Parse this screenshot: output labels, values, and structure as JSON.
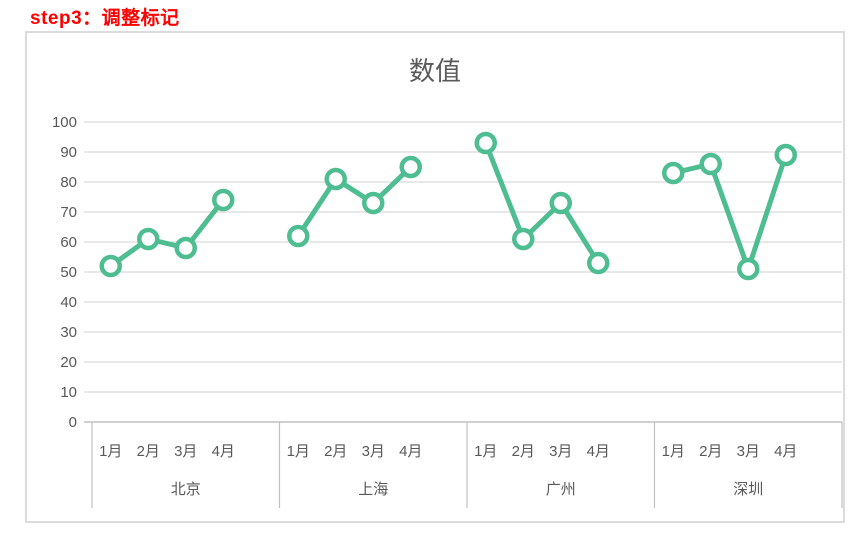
{
  "header": {
    "step_label": "step3：调整标记",
    "color": "#ff0000"
  },
  "chart_data": {
    "type": "line",
    "title": "数值",
    "legend": "none",
    "grid": true,
    "ylim": [
      0,
      100
    ],
    "ytick_step": 10,
    "yticks": [
      0,
      10,
      20,
      30,
      40,
      50,
      60,
      70,
      80,
      90,
      100
    ],
    "month_categories": [
      "1月",
      "2月",
      "3月",
      "4月"
    ],
    "groups": [
      {
        "city": "北京",
        "values": [
          52,
          61,
          58,
          74
        ]
      },
      {
        "city": "上海",
        "values": [
          62,
          81,
          73,
          85
        ]
      },
      {
        "city": "广州",
        "values": [
          93,
          61,
          73,
          53
        ]
      },
      {
        "city": "深圳",
        "values": [
          83,
          86,
          51,
          89
        ]
      }
    ],
    "series_color": "#4ebd91",
    "marker": "open-circle",
    "marker_fill": "#ffffff",
    "gridline_color": "#d9d9d9",
    "axis_color": "#c0c0c0",
    "label_color": "#595959",
    "border_color": "#dcdcdc"
  }
}
